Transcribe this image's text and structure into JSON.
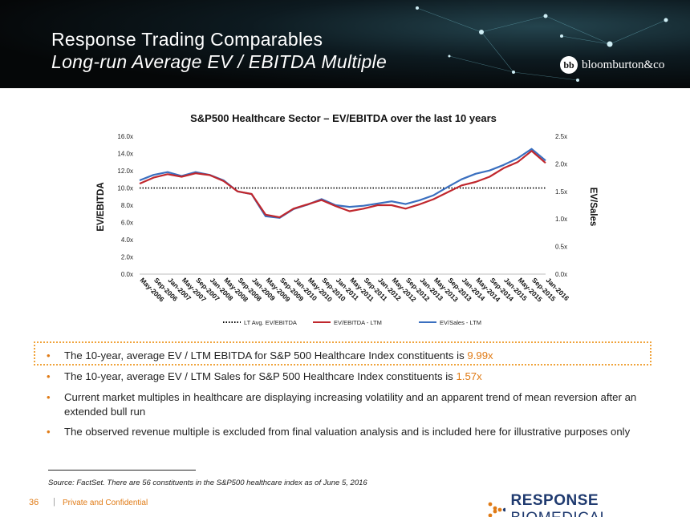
{
  "header": {
    "title": "Response Trading Comparables",
    "subtitle": "Long-run Average EV / EBITDA Multiple",
    "logo_mark": "bb",
    "logo_text": "bloomburton&co"
  },
  "colors": {
    "ebitda": "#c0272d",
    "sales": "#3a6fbf",
    "avg": "#000000",
    "accent": "#e07b16",
    "brand_blue": "#1f3a6f"
  },
  "chart_data": {
    "type": "line",
    "title": "S&P500 Healthcare Sector – EV/EBITDA over the last 10 years",
    "ylabel": "EV/EBITDA",
    "y2label": "EV/Sales",
    "ylim": [
      0,
      16
    ],
    "y2lim": [
      0,
      2.5
    ],
    "yticks": [
      "0.0x",
      "2.0x",
      "4.0x",
      "6.0x",
      "8.0x",
      "10.0x",
      "12.0x",
      "14.0x",
      "16.0x"
    ],
    "y2ticks": [
      "0.0x",
      "0.5x",
      "1.0x",
      "1.5x",
      "2.0x",
      "2.5x"
    ],
    "xticks": [
      "May-2006",
      "Sep-2006",
      "Jan-2007",
      "May-2007",
      "Sep-2007",
      "Jan-2008",
      "May-2008",
      "Sep-2008",
      "Jan-2009",
      "May-2009",
      "Sep-2009",
      "Jan-2010",
      "May-2010",
      "Sep-2010",
      "Jan-2011",
      "May-2011",
      "Sep-2011",
      "Jan-2012",
      "May-2012",
      "Sep-2012",
      "Jan-2013",
      "May-2013",
      "Sep-2013",
      "Jan-2014",
      "May-2014",
      "Sep-2014",
      "Jan-2015",
      "May-2015",
      "Sep-2015",
      "Jan-2016"
    ],
    "grid": false,
    "legend_position": "bottom",
    "series": [
      {
        "name": "LT Avg. EV/EBITDA",
        "axis": "left",
        "style": "dotted",
        "values": [
          9.99,
          9.99,
          9.99,
          9.99,
          9.99,
          9.99,
          9.99,
          9.99,
          9.99,
          9.99,
          9.99,
          9.99,
          9.99,
          9.99,
          9.99,
          9.99,
          9.99,
          9.99,
          9.99,
          9.99,
          9.99,
          9.99,
          9.99,
          9.99,
          9.99,
          9.99,
          9.99,
          9.99,
          9.99,
          9.99
        ]
      },
      {
        "name": "EV/EBITDA - LTM",
        "axis": "left",
        "style": "solid",
        "values": [
          10.5,
          11.2,
          11.6,
          11.3,
          11.7,
          11.5,
          10.8,
          9.6,
          9.3,
          6.9,
          6.6,
          7.6,
          8.1,
          8.6,
          7.9,
          7.3,
          7.6,
          8.0,
          8.0,
          7.6,
          8.1,
          8.7,
          9.5,
          10.3,
          10.7,
          11.3,
          12.3,
          13.0,
          14.3,
          12.9
        ]
      },
      {
        "name": "EV/Sales - LTM",
        "axis": "right",
        "style": "solid",
        "values": [
          1.7,
          1.8,
          1.85,
          1.78,
          1.85,
          1.8,
          1.7,
          1.5,
          1.45,
          1.05,
          1.02,
          1.18,
          1.26,
          1.36,
          1.25,
          1.22,
          1.24,
          1.28,
          1.32,
          1.27,
          1.34,
          1.43,
          1.58,
          1.72,
          1.82,
          1.88,
          1.98,
          2.1,
          2.27,
          2.06
        ]
      }
    ]
  },
  "bullets": [
    {
      "text": "The 10-year, average EV / LTM EBITDA for S&P 500 Healthcare Index constituents is ",
      "value": "9.99x"
    },
    {
      "text": "The 10-year, average EV / LTM Sales for S&P 500 Healthcare Index constituents is ",
      "value": "1.57x"
    },
    {
      "text": "Current market multiples in healthcare are displaying increasing volatility and an apparent trend of mean reversion after an extended bull run",
      "value": ""
    },
    {
      "text": "The observed revenue multiple is excluded from final valuation analysis and is included here for illustrative purposes only",
      "value": ""
    }
  ],
  "bullet_char": "•",
  "source": "Source: FactSet. There are 56 constituents in the S&P500 healthcare index as of June 5, 2016",
  "footer": {
    "page_number": "36",
    "separator": "|",
    "confidential": "Private and Confidential",
    "brand_bold": "RESPONSE",
    "brand_rest": " BIOMEDICAL"
  }
}
